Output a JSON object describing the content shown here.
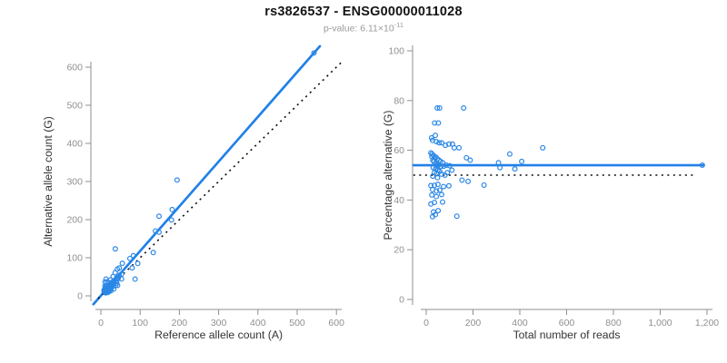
{
  "header": {
    "title": "rs3826537 - ENSG00000011028",
    "pvalue_prefix": "p-value: 6.11×10",
    "pvalue_exponent": "-11"
  },
  "colors": {
    "point": "#2b87e6",
    "line": "#2080e8",
    "dotted": "#0a0a0a",
    "axis": "#8f8f8f",
    "tick_label": "#909090",
    "axis_title": "#333333",
    "title": "#151515",
    "subtitle": "#9a9a9a"
  },
  "chart_data": [
    {
      "type": "scatter",
      "name": "allele-counts-scatter",
      "xlabel": "Reference allele count (A)",
      "ylabel": "Alternative allele count (G)",
      "xlim": [
        0,
        620
      ],
      "ylim": [
        0,
        650
      ],
      "grid": false,
      "xticks": [
        0,
        100,
        200,
        300,
        400,
        500,
        600
      ],
      "xtick_labels": [
        "0",
        "100",
        "200",
        "300",
        "400",
        "500",
        "600"
      ],
      "yticks": [
        0,
        100,
        200,
        300,
        400,
        500,
        600
      ],
      "ytick_labels": [
        "0",
        "100",
        "200",
        "300",
        "400",
        "500",
        "600"
      ],
      "lines": [
        {
          "name": "regression-line",
          "style": "solid",
          "points": [
            [
              -19,
              -22
            ],
            [
              558,
              655
            ]
          ]
        },
        {
          "name": "identity-line",
          "style": "dotted",
          "points": [
            [
              -7,
              -7
            ],
            [
              613,
              613
            ]
          ]
        }
      ],
      "points": [
        [
          10.8,
          36.2
        ],
        [
          13.1,
          43.9
        ],
        [
          36.8,
          123.2
        ],
        [
          10.4,
          25.6
        ],
        [
          15.1,
          36.9
        ],
        [
          8.1,
          15.0
        ],
        [
          13.3,
          25.7
        ],
        [
          9.7,
          17.3
        ],
        [
          15.7,
          27.3
        ],
        [
          20.4,
          34.7
        ],
        [
          24.4,
          41.6
        ],
        [
          31.2,
          50.8
        ],
        [
          36.4,
          60.6
        ],
        [
          42.0,
          70.0
        ],
        [
          46.8,
          73.2
        ],
        [
          54.6,
          85.4
        ],
        [
          194.2,
          303.8
        ],
        [
          148.2,
          208.9
        ],
        [
          74.0,
          98.0
        ],
        [
          82.7,
          105.3
        ],
        [
          181.6,
          226.4
        ],
        [
          139.1,
          170.0
        ],
        [
          148.1,
          167.0
        ],
        [
          180.0,
          199.0
        ],
        [
          133.4,
          113.6
        ],
        [
          79.6,
          73.4
        ],
        [
          94.0,
          85.0
        ],
        [
          87.1,
          43.9
        ],
        [
          542.8,
          637.2
        ],
        [
          8.2,
          11.8
        ],
        [
          10.4,
          14.6
        ],
        [
          13.0,
          18.0
        ],
        [
          10.2,
          13.8
        ],
        [
          15.5,
          20.5
        ],
        [
          18.0,
          24.0
        ],
        [
          20.9,
          27.1
        ],
        [
          12.3,
          15.7
        ],
        [
          14.7,
          18.3
        ],
        [
          24.2,
          30.8
        ],
        [
          27.1,
          33.9
        ],
        [
          31.5,
          38.5
        ],
        [
          17.3,
          20.7
        ],
        [
          20.7,
          24.3
        ],
        [
          23.9,
          28.1
        ],
        [
          29.3,
          33.7
        ],
        [
          34.8,
          40.2
        ],
        [
          39.6,
          46.4
        ],
        [
          46.2,
          53.8
        ],
        [
          14.1,
          15.9
        ],
        [
          19.0,
          21.0
        ],
        [
          24.0,
          26.0
        ],
        [
          28.1,
          29.9
        ],
        [
          17.2,
          17.9
        ],
        [
          22.2,
          22.8
        ],
        [
          32.2,
          32.8
        ],
        [
          40.0,
          40.0
        ],
        [
          44.1,
          45.9
        ],
        [
          52.8,
          57.2
        ],
        [
          14.1,
          13.9
        ],
        [
          24.5,
          23.5
        ],
        [
          10.8,
          9.2
        ],
        [
          18.9,
          16.1
        ],
        [
          26.9,
          23.2
        ],
        [
          40.4,
          33.6
        ],
        [
          15.1,
          11.9
        ],
        [
          32.5,
          25.5
        ],
        [
          24.8,
          19.2
        ],
        [
          52.7,
          44.3
        ],
        [
          13.9,
          10.1
        ],
        [
          25.2,
          17.8
        ],
        [
          38.1,
          27.9
        ],
        [
          12.3,
          7.7
        ],
        [
          21.4,
          13.7
        ],
        [
          42.6,
          27.4
        ],
        [
          20.1,
          10.9
        ],
        [
          32.8,
          18.2
        ],
        [
          25.7,
          13.3
        ],
        [
          18.0,
          9.0
        ]
      ]
    },
    {
      "type": "scatter",
      "name": "percentage-vs-coverage-scatter",
      "xlabel": "Total number of reads",
      "ylabel": "Percentage alternative (G)",
      "xlim": [
        0,
        1200
      ],
      "ylim": [
        0,
        100
      ],
      "grid": false,
      "xticks": [
        0,
        200,
        400,
        600,
        800,
        1000,
        1200
      ],
      "xtick_labels": [
        "0",
        "200",
        "400",
        "600",
        "800",
        "1,000",
        "1,200"
      ],
      "yticks": [
        0,
        20,
        40,
        60,
        80,
        100
      ],
      "ytick_labels": [
        "0",
        "20",
        "40",
        "60",
        "80",
        "100"
      ],
      "lines": [
        {
          "name": "mean-percentage-line",
          "style": "solid",
          "points": [
            [
              -55,
              54
            ],
            [
              1186,
              54
            ]
          ]
        },
        {
          "name": "expected-50pct-line",
          "style": "dotted",
          "points": [
            [
              -55,
              50
            ],
            [
              1150,
              50
            ]
          ]
        }
      ],
      "points": [
        [
          47,
          77
        ],
        [
          57,
          77
        ],
        [
          160,
          77
        ],
        [
          36,
          71
        ],
        [
          52,
          71
        ],
        [
          23,
          65
        ],
        [
          39,
          66
        ],
        [
          27,
          64
        ],
        [
          43,
          63.5
        ],
        [
          55,
          63
        ],
        [
          66,
          63
        ],
        [
          82,
          62
        ],
        [
          97,
          62.5
        ],
        [
          112,
          62.5
        ],
        [
          120,
          61
        ],
        [
          140,
          61
        ],
        [
          498,
          61
        ],
        [
          357,
          58.5
        ],
        [
          172,
          57
        ],
        [
          188,
          56
        ],
        [
          408,
          55.5
        ],
        [
          309,
          55
        ],
        [
          315,
          53
        ],
        [
          379,
          52.5
        ],
        [
          247,
          46
        ],
        [
          153,
          48
        ],
        [
          179,
          47.5
        ],
        [
          131,
          33.5
        ],
        [
          1180,
          54
        ],
        [
          20,
          59
        ],
        [
          25,
          58.5
        ],
        [
          31,
          58
        ],
        [
          24,
          57.5
        ],
        [
          36,
          57
        ],
        [
          42,
          57.2
        ],
        [
          48,
          56.5
        ],
        [
          28,
          56
        ],
        [
          33,
          55.5
        ],
        [
          55,
          56
        ],
        [
          61,
          55.5
        ],
        [
          70,
          55
        ],
        [
          38,
          54.5
        ],
        [
          45,
          54
        ],
        [
          52,
          54
        ],
        [
          63,
          53.5
        ],
        [
          75,
          53.6
        ],
        [
          86,
          54
        ],
        [
          100,
          53.8
        ],
        [
          30,
          53
        ],
        [
          40,
          52.5
        ],
        [
          50,
          52
        ],
        [
          58,
          51.5
        ],
        [
          35,
          51
        ],
        [
          45,
          50.6
        ],
        [
          65,
          50.4
        ],
        [
          80,
          50
        ],
        [
          90,
          51
        ],
        [
          110,
          52
        ],
        [
          28,
          49.6
        ],
        [
          48,
          49
        ],
        [
          20,
          45.8
        ],
        [
          35,
          45.9
        ],
        [
          50,
          46.3
        ],
        [
          74,
          45.4
        ],
        [
          27,
          44.2
        ],
        [
          58,
          44
        ],
        [
          44,
          43.6
        ],
        [
          97,
          45.7
        ],
        [
          24,
          42
        ],
        [
          43,
          41.4
        ],
        [
          66,
          42.2
        ],
        [
          20,
          38.4
        ],
        [
          35,
          39
        ],
        [
          70,
          39.2
        ],
        [
          31,
          35.2
        ],
        [
          51,
          35.7
        ],
        [
          39,
          34.1
        ],
        [
          27,
          33.3
        ]
      ]
    }
  ]
}
